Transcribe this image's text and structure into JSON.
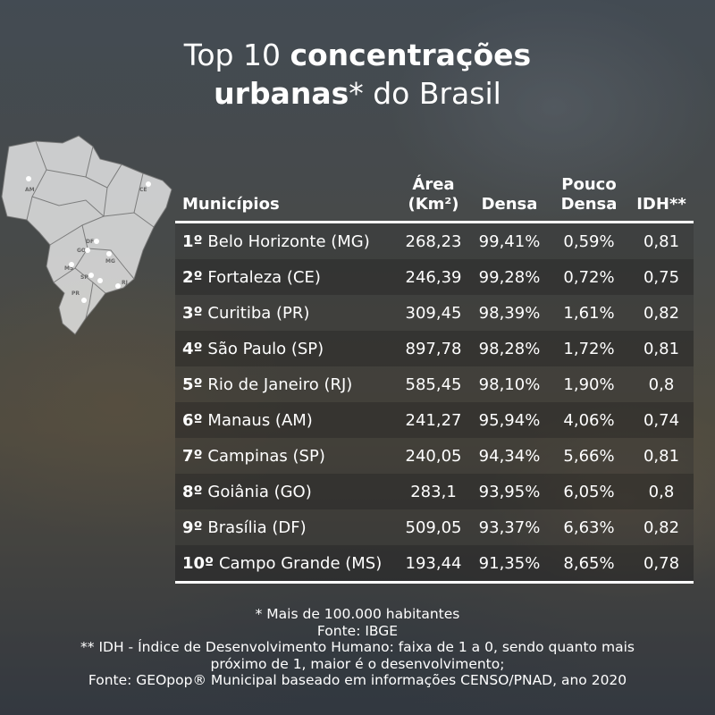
{
  "title": {
    "line1_light": "Top 10 ",
    "line1_bold": "concentrações",
    "line2_bold": "urbanas",
    "line2_light": "* do Brasil"
  },
  "map": {
    "state_labels": [
      "AM",
      "CE",
      "DF",
      "GO",
      "MG",
      "SP",
      "MS",
      "PR",
      "RJ"
    ]
  },
  "table": {
    "headers": {
      "municipios": "Municípios",
      "area_line1": "Área",
      "area_line2": "(Km²)",
      "densa": "Densa",
      "pouco_line1": "Pouco",
      "pouco_line2": "Densa",
      "idh": "IDH**"
    },
    "rows": [
      {
        "rank": "1º",
        "name": "Belo Horizonte (MG)",
        "area": "268,23",
        "densa": "99,41%",
        "pouco_densa": "0,59%",
        "idh": "0,81"
      },
      {
        "rank": "2º",
        "name": "Fortaleza (CE)",
        "area": "246,39",
        "densa": "99,28%",
        "pouco_densa": "0,72%",
        "idh": "0,75"
      },
      {
        "rank": "3º",
        "name": "Curitiba (PR)",
        "area": "309,45",
        "densa": "98,39%",
        "pouco_densa": "1,61%",
        "idh": "0,82"
      },
      {
        "rank": "4º",
        "name": "São Paulo (SP)",
        "area": "897,78",
        "densa": "98,28%",
        "pouco_densa": "1,72%",
        "idh": "0,81"
      },
      {
        "rank": "5º",
        "name": "Rio de Janeiro (RJ)",
        "area": "585,45",
        "densa": "98,10%",
        "pouco_densa": "1,90%",
        "idh": "0,8"
      },
      {
        "rank": "6º",
        "name": "Manaus (AM)",
        "area": "241,27",
        "densa": "95,94%",
        "pouco_densa": "4,06%",
        "idh": "0,74"
      },
      {
        "rank": "7º",
        "name": "Campinas (SP)",
        "area": "240,05",
        "densa": "94,34%",
        "pouco_densa": "5,66%",
        "idh": "0,81"
      },
      {
        "rank": "8º",
        "name": "Goiânia (GO)",
        "area": "283,1",
        "densa": "93,95%",
        "pouco_densa": "6,05%",
        "idh": "0,8"
      },
      {
        "rank": "9º",
        "name": "Brasília (DF)",
        "area": "509,05",
        "densa": "93,37%",
        "pouco_densa": "6,63%",
        "idh": "0,82"
      },
      {
        "rank": "10º",
        "name": "Campo Grande (MS)",
        "area": "193,44",
        "densa": "91,35%",
        "pouco_densa": "8,65%",
        "idh": "0,78"
      }
    ]
  },
  "footer": {
    "line1": "* Mais de 100.000 habitantes",
    "line2": "Fonte:  IBGE",
    "line3": "** IDH - Índice de Desenvolvimento Humano: faixa de 1 a 0, sendo quanto mais",
    "line4": "próximo de 1, maior é o desenvolvimento;",
    "line5": "Fonte: GEOpop® Municipal baseado em informações CENSO/PNAD, ano 2020"
  }
}
